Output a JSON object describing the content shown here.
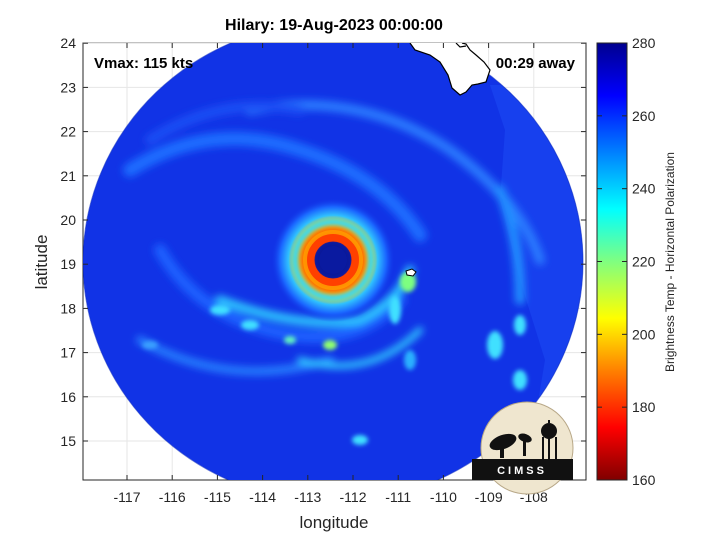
{
  "title": "Hilary: 19-Aug-2023 00:00:00",
  "vmax": "Vmax: 115 kts",
  "time_away": "00:29 away",
  "axes": {
    "xlabel": "longitude",
    "ylabel": "latitude",
    "xticks": [
      "-117",
      "-116",
      "-115",
      "-114",
      "-113",
      "-112",
      "-111",
      "-110",
      "-109",
      "-108"
    ],
    "yticks": [
      "15",
      "16",
      "17",
      "18",
      "19",
      "20",
      "21",
      "22",
      "23",
      "24"
    ]
  },
  "colorbar": {
    "label": "Brightness Temp - Horizontal Polarization",
    "ticks": [
      "160",
      "180",
      "200",
      "220",
      "240",
      "260",
      "280"
    ]
  },
  "logo": {
    "text": "CIMSS"
  },
  "colors": {
    "swath_base": "#1133e6",
    "eye": "#0a1aa0",
    "eyewall": "#ff5a00",
    "colormap": [
      "#800000",
      "#ff0000",
      "#ff8000",
      "#ffff00",
      "#80ff80",
      "#00ffff",
      "#0080ff",
      "#0000ff",
      "#00008f"
    ]
  }
}
